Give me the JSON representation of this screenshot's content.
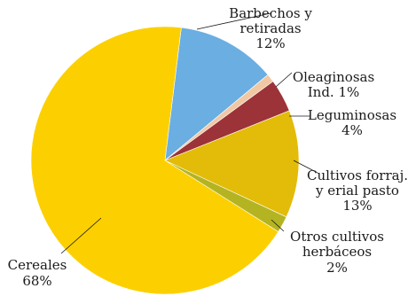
{
  "chart_data": {
    "type": "pie",
    "title": "",
    "slices": [
      {
        "label_lines": [
          "Barbechos y",
          "retiradas"
        ],
        "percent_text": "12%",
        "value": 12,
        "color": "#6aaee2"
      },
      {
        "label_lines": [
          "Oleaginosas",
          "Ind. 1%"
        ],
        "percent_text": "",
        "value": 1,
        "color": "#f1c8a4"
      },
      {
        "label_lines": [
          "Leguminosas"
        ],
        "percent_text": "4%",
        "value": 4,
        "color": "#9c3338"
      },
      {
        "label_lines": [
          "Cultivos forraj.",
          "y erial pasto"
        ],
        "percent_text": "13%",
        "value": 13,
        "color": "#e2bc08"
      },
      {
        "label_lines": [
          "Otros cultivos",
          "herbáceos"
        ],
        "percent_text": "2%",
        "value": 2,
        "color": "#b4b422"
      },
      {
        "label_lines": [
          "Cereales"
        ],
        "percent_text": "68%",
        "value": 68,
        "color": "#fcd000"
      }
    ]
  }
}
